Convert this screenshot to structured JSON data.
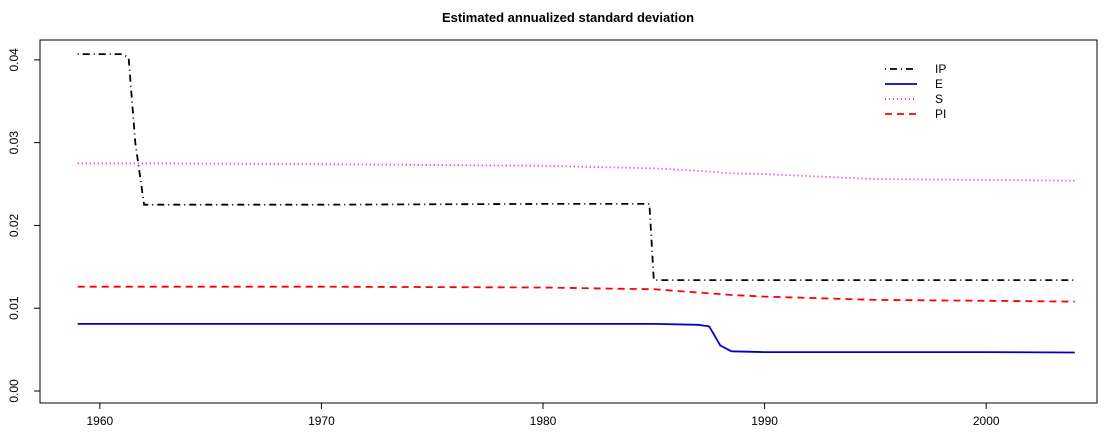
{
  "chart_data": {
    "type": "line",
    "title": "Estimated annualized standard deviation",
    "x": [
      1959,
      1961,
      1961.3,
      1961.6,
      1962,
      1970,
      1980,
      1984.8,
      1985,
      1987,
      1987.5,
      1988,
      1988.5,
      1990,
      1995,
      2000,
      2004
    ],
    "series": [
      {
        "name": "IP",
        "color": "#000000",
        "dash": "dotdash",
        "values": [
          0.0407,
          0.0407,
          0.0403,
          0.03,
          0.0225,
          0.0225,
          0.0226,
          0.0226,
          0.0134,
          0.0134,
          0.0134,
          0.0134,
          0.0134,
          0.0134,
          0.0134,
          0.0134,
          0.0134
        ]
      },
      {
        "name": "E",
        "color": "#0000cd",
        "dash": "solid",
        "values": [
          0.0081,
          0.0081,
          0.0081,
          0.0081,
          0.0081,
          0.0081,
          0.0081,
          0.0081,
          0.0081,
          0.008,
          0.0078,
          0.0055,
          0.0048,
          0.0047,
          0.0047,
          0.0047,
          0.00465
        ]
      },
      {
        "name": "S",
        "color": "#ff00ff",
        "dash": "dotted",
        "values": [
          0.0275,
          0.0275,
          0.0275,
          0.0275,
          0.0275,
          0.0274,
          0.0272,
          0.0269,
          0.0269,
          0.0266,
          0.0265,
          0.0264,
          0.0263,
          0.0262,
          0.0256,
          0.0255,
          0.0254
        ]
      },
      {
        "name": "PI",
        "color": "#ff0000",
        "dash": "dashed",
        "values": [
          0.0126,
          0.0126,
          0.0126,
          0.0126,
          0.0126,
          0.0126,
          0.0125,
          0.0123,
          0.0123,
          0.0119,
          0.0118,
          0.0117,
          0.0116,
          0.0114,
          0.011,
          0.0109,
          0.0108
        ]
      }
    ],
    "xlim": [
      1957.3,
      2005.0
    ],
    "xticks": [
      1960,
      1970,
      1980,
      1990,
      2000
    ],
    "ylim": [
      -0.00145,
      0.0424
    ],
    "yticks": [
      {
        "value": 0,
        "label": "0.00"
      },
      0.01,
      0.02,
      0.03,
      0.04
    ],
    "legend": "top-right"
  }
}
